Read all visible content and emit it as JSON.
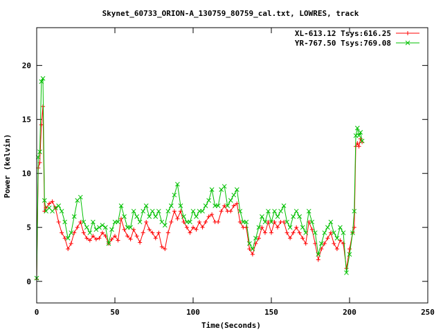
{
  "chart_data": {
    "type": "line",
    "title": "Skynet_60733_ORION-A_130759_80759_cal.txt, LOWRES, track",
    "xlabel": "Time(Seconds)",
    "ylabel": "Power (kelvin)",
    "xlim": [
      0,
      250
    ],
    "ylim": [
      -2,
      23.5
    ],
    "xticks": [
      0,
      50,
      100,
      150,
      200,
      250
    ],
    "yticks": [
      0,
      5,
      10,
      15,
      20
    ],
    "legend_position": "top-right",
    "grid": false,
    "series": [
      {
        "name": "XL-613.12 Tsys:616.25",
        "color": "#ff0000",
        "marker": "plus",
        "x": [
          0,
          1,
          2,
          3,
          4,
          5,
          6,
          8,
          10,
          12,
          14,
          16,
          18,
          20,
          22,
          24,
          26,
          28,
          30,
          32,
          34,
          36,
          38,
          40,
          42,
          44,
          46,
          48,
          50,
          52,
          54,
          56,
          58,
          60,
          62,
          64,
          66,
          68,
          70,
          72,
          74,
          76,
          78,
          80,
          82,
          84,
          86,
          88,
          90,
          92,
          94,
          96,
          98,
          100,
          102,
          104,
          106,
          108,
          110,
          112,
          114,
          116,
          118,
          120,
          122,
          124,
          126,
          128,
          130,
          132,
          134,
          136,
          138,
          140,
          142,
          144,
          146,
          148,
          150,
          152,
          154,
          156,
          158,
          160,
          162,
          164,
          166,
          168,
          170,
          172,
          174,
          176,
          178,
          180,
          182,
          184,
          186,
          188,
          190,
          192,
          194,
          196,
          198,
          200,
          202,
          203,
          204,
          205,
          206,
          207,
          208
        ],
        "y": [
          0.2,
          10.5,
          11,
          14.5,
          16.2,
          6.5,
          6.8,
          7.2,
          7.4,
          6.8,
          5.5,
          4.5,
          4,
          3,
          3.5,
          4.5,
          5,
          5.5,
          4.5,
          4,
          3.8,
          4.2,
          3.9,
          4,
          4.5,
          4.2,
          3.5,
          3.9,
          4.2,
          3.8,
          5.8,
          4.8,
          4.2,
          3.9,
          4.8,
          4.2,
          3.6,
          4.5,
          5.5,
          4.8,
          4.5,
          4,
          4.5,
          3.2,
          3,
          4.5,
          5.5,
          6.5,
          5.8,
          6.5,
          5.5,
          5,
          4.5,
          5,
          4.8,
          5.5,
          5,
          5.5,
          6,
          6.2,
          5.5,
          5.5,
          6.5,
          7,
          6.5,
          6.5,
          7,
          7.2,
          5.5,
          5,
          5,
          3,
          2.5,
          3.5,
          4,
          5,
          4.5,
          5.5,
          4.5,
          5.5,
          5,
          5.5,
          5.5,
          4.5,
          4,
          4.5,
          5,
          4.5,
          4,
          3.5,
          5.5,
          4.8,
          3.5,
          2,
          3,
          3.5,
          4,
          4.5,
          3.5,
          3,
          3.8,
          3.5,
          1.2,
          3,
          4.5,
          5,
          12.5,
          12.8,
          12.5,
          13.2,
          12.9
        ]
      },
      {
        "name": "YR-767.50 Tsys:769.08",
        "color": "#00c000",
        "marker": "x",
        "x": [
          0,
          1,
          2,
          3,
          4,
          5,
          6,
          8,
          10,
          12,
          14,
          16,
          18,
          20,
          22,
          24,
          26,
          28,
          30,
          32,
          34,
          36,
          38,
          40,
          42,
          44,
          46,
          48,
          50,
          52,
          54,
          56,
          58,
          60,
          62,
          64,
          66,
          68,
          70,
          72,
          74,
          76,
          78,
          80,
          82,
          84,
          86,
          88,
          90,
          92,
          94,
          96,
          98,
          100,
          102,
          104,
          106,
          108,
          110,
          112,
          114,
          116,
          118,
          120,
          122,
          124,
          126,
          128,
          130,
          132,
          134,
          136,
          138,
          140,
          142,
          144,
          146,
          148,
          150,
          152,
          154,
          156,
          158,
          160,
          162,
          164,
          166,
          168,
          170,
          172,
          174,
          176,
          178,
          180,
          182,
          184,
          186,
          188,
          190,
          192,
          194,
          196,
          198,
          200,
          202,
          203,
          204,
          205,
          206,
          207,
          208
        ],
        "y": [
          0.3,
          11.5,
          12,
          18.5,
          18.8,
          7.5,
          6.5,
          6.8,
          6.5,
          6.8,
          7,
          6.5,
          5.5,
          4,
          4.5,
          6,
          7.5,
          7.8,
          5.5,
          5,
          4.5,
          5.5,
          4.8,
          5,
          5.2,
          5,
          3.5,
          4.8,
          5.5,
          5.5,
          7,
          6,
          5,
          5,
          6.5,
          6,
          5.5,
          6.5,
          7,
          6,
          6.5,
          6,
          6.5,
          5.5,
          5.2,
          6.5,
          7,
          8,
          9,
          7,
          6,
          5.5,
          5.5,
          6.5,
          6,
          6.5,
          6.5,
          7,
          7.5,
          8.5,
          7,
          7,
          8.5,
          8.8,
          7,
          7.5,
          8,
          8.5,
          6.5,
          5.5,
          5.5,
          3.5,
          3,
          4,
          5,
          6,
          5.5,
          6.5,
          5.5,
          6.5,
          6,
          6.5,
          7,
          5.5,
          5,
          6,
          6.5,
          6,
          5,
          4.5,
          6.5,
          5.5,
          4.5,
          2.5,
          3.5,
          4.5,
          5,
          5.5,
          4.5,
          4,
          5,
          4.5,
          0.8,
          2.5,
          4.5,
          6.5,
          13.5,
          14.2,
          13.5,
          13.8,
          13
        ]
      }
    ]
  }
}
